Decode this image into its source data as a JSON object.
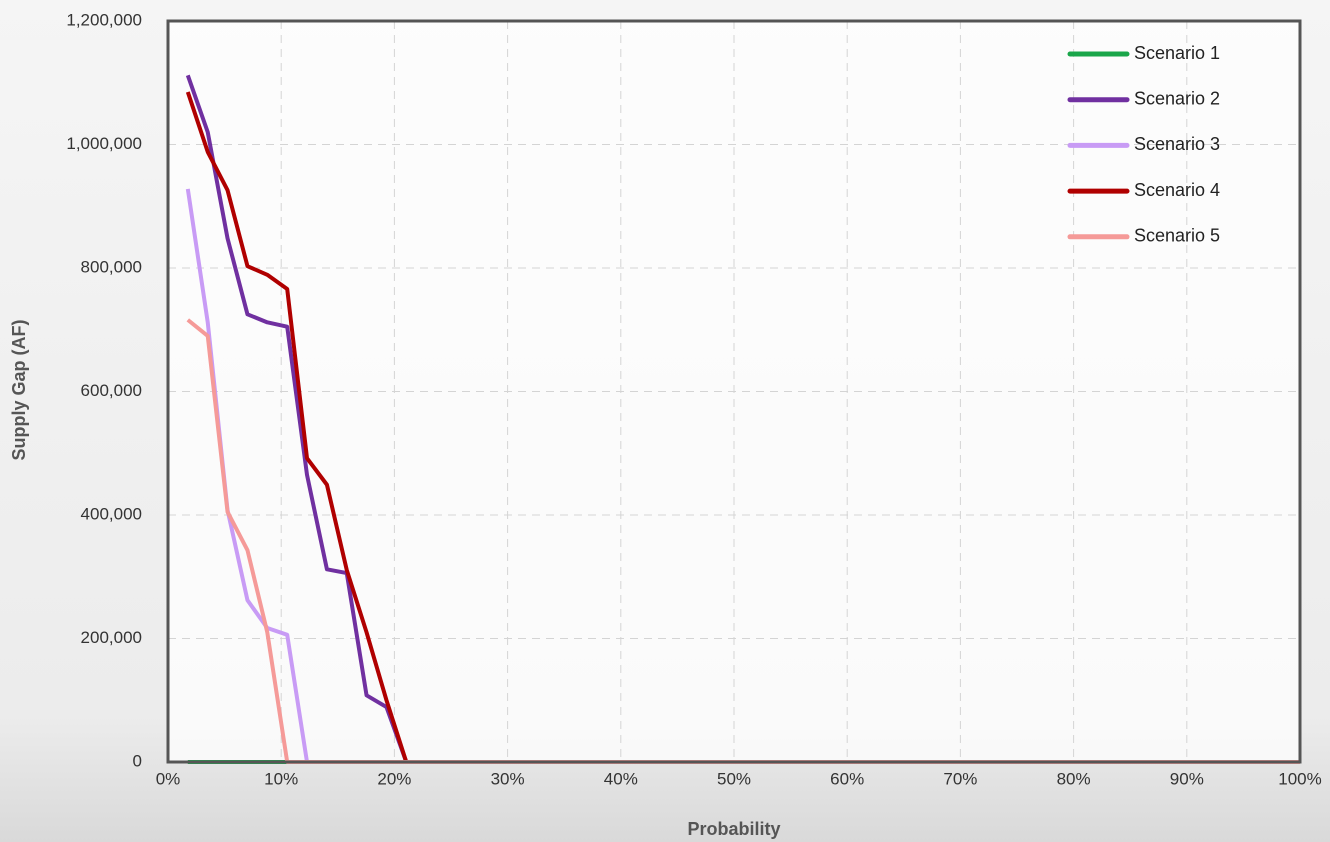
{
  "chart_data": {
    "type": "line",
    "xlabel": "Probability",
    "ylabel": "Supply Gap (AF)",
    "x": [
      1.75,
      3.51,
      5.26,
      7.02,
      8.77,
      10.53,
      12.28,
      14.04,
      15.79,
      17.54,
      19.3,
      21.05,
      22.81,
      24.56,
      26.32,
      28.07,
      29.82,
      31.58,
      33.33,
      35.09,
      36.84,
      38.6,
      40.35,
      42.11,
      43.86,
      45.61,
      47.37,
      49.12,
      50.88,
      52.63,
      54.39,
      56.14,
      57.89,
      59.65,
      61.4,
      63.16,
      64.91,
      66.67,
      68.42,
      70.18,
      71.93,
      73.68,
      75.44,
      77.19,
      78.95,
      80.7,
      82.46,
      84.21,
      85.96,
      87.72,
      89.47,
      91.23,
      92.98,
      94.74,
      96.49,
      98.25,
      100
    ],
    "series": [
      {
        "name": "Scenario 1",
        "color": "#1aa64a",
        "values": [
          0,
          0,
          0,
          0,
          0,
          0,
          0,
          0,
          0,
          0,
          0,
          0,
          0,
          0,
          0,
          0,
          0,
          0,
          0,
          0,
          0,
          0,
          0,
          0,
          0,
          0,
          0,
          0,
          0,
          0,
          0,
          0,
          0,
          0,
          0,
          0,
          0,
          0,
          0,
          0,
          0,
          0,
          0,
          0,
          0,
          0,
          0,
          0,
          0,
          0,
          0,
          0,
          0,
          0,
          0,
          0,
          0
        ]
      },
      {
        "name": "Scenario 2",
        "color": "#7030a0",
        "values": [
          1112000,
          1020000,
          848000,
          725000,
          712000,
          705000,
          465000,
          312000,
          306000,
          108000,
          89000,
          0,
          0,
          0,
          0,
          0,
          0,
          0,
          0,
          0,
          0,
          0,
          0,
          0,
          0,
          0,
          0,
          0,
          0,
          0,
          0,
          0,
          0,
          0,
          0,
          0,
          0,
          0,
          0,
          0,
          0,
          0,
          0,
          0,
          0,
          0,
          0,
          0,
          0,
          0,
          0,
          0,
          0,
          0,
          0,
          0,
          0
        ]
      },
      {
        "name": "Scenario 3",
        "color": "#c89bf5",
        "values": [
          928000,
          712000,
          408000,
          262000,
          217000,
          206000,
          0,
          0,
          0,
          0,
          0,
          0,
          0,
          0,
          0,
          0,
          0,
          0,
          0,
          0,
          0,
          0,
          0,
          0,
          0,
          0,
          0,
          0,
          0,
          0,
          0,
          0,
          0,
          0,
          0,
          0,
          0,
          0,
          0,
          0,
          0,
          0,
          0,
          0,
          0,
          0,
          0,
          0,
          0,
          0,
          0,
          0,
          0,
          0,
          0,
          0,
          0
        ]
      },
      {
        "name": "Scenario 4",
        "color": "#b00000",
        "values": [
          1085000,
          988000,
          926000,
          803000,
          789000,
          766000,
          492000,
          449000,
          311000,
          210000,
          100000,
          0,
          0,
          0,
          0,
          0,
          0,
          0,
          0,
          0,
          0,
          0,
          0,
          0,
          0,
          0,
          0,
          0,
          0,
          0,
          0,
          0,
          0,
          0,
          0,
          0,
          0,
          0,
          0,
          0,
          0,
          0,
          0,
          0,
          0,
          0,
          0,
          0,
          0,
          0,
          0,
          0,
          0,
          0,
          0,
          0,
          0
        ]
      },
      {
        "name": "Scenario 5",
        "color": "#f59a98",
        "values": [
          716000,
          690000,
          405000,
          343000,
          210000,
          0,
          0,
          0,
          0,
          0,
          0,
          0,
          0,
          0,
          0,
          0,
          0,
          0,
          0,
          0,
          0,
          0,
          0,
          0,
          0,
          0,
          0,
          0,
          0,
          0,
          0,
          0,
          0,
          0,
          0,
          0,
          0,
          0,
          0,
          0,
          0,
          0,
          0,
          0,
          0,
          0,
          0,
          0,
          0,
          0,
          0,
          0,
          0,
          0,
          0,
          0,
          0
        ]
      }
    ],
    "xlim": [
      0,
      100
    ],
    "xticks": [
      {
        "value": 0,
        "label": "0%"
      },
      {
        "value": 10,
        "label": "10%"
      },
      {
        "value": 20,
        "label": "20%"
      },
      {
        "value": 30,
        "label": "30%"
      },
      {
        "value": 40,
        "label": "40%"
      },
      {
        "value": 50,
        "label": "50%"
      },
      {
        "value": 60,
        "label": "60%"
      },
      {
        "value": 70,
        "label": "70%"
      },
      {
        "value": 80,
        "label": "80%"
      },
      {
        "value": 90,
        "label": "90%"
      },
      {
        "value": 100,
        "label": "100%"
      }
    ],
    "ylim": [
      0,
      1200000
    ],
    "yticks": [
      0,
      {
        "value": 200000,
        "label": "200,000"
      },
      {
        "value": 400000,
        "label": "400,000"
      },
      {
        "value": 600000,
        "label": "600,000"
      },
      {
        "value": 800000,
        "label": "800,000"
      },
      {
        "value": 1000000,
        "label": "1,000,000"
      },
      {
        "value": 1200000,
        "label": "1,200,000"
      }
    ],
    "grid": true,
    "legend": "upper right"
  }
}
